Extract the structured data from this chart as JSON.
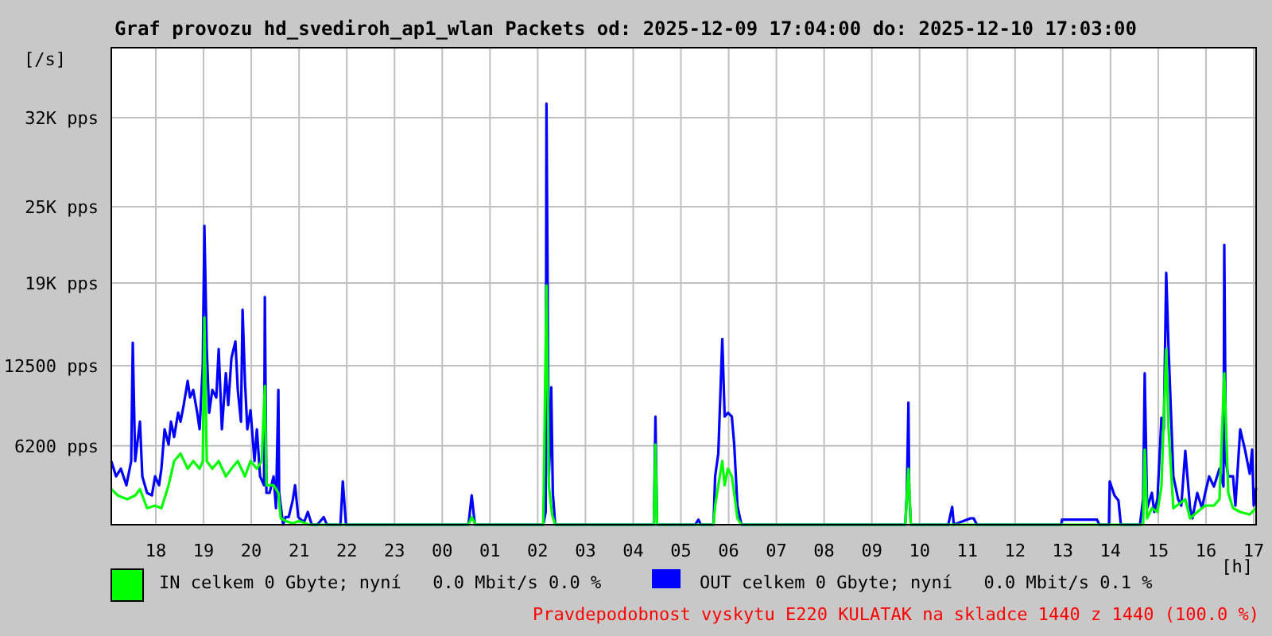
{
  "chart_data": {
    "type": "line",
    "title": "Graf provozu hd_svediroh_ap1_wlan Packets od: 2025-12-09 17:04:00 do: 2025-12-10 17:03:00",
    "ylabel": "[/s]",
    "xlabel": "[h]",
    "annotations": [
      "Pravdepodobnost vyskytu E220 KULATAK na skladce 1440 z 1440 (100.0 %)"
    ],
    "xlim": [
      "2025-12-09T17:04",
      "2025-12-10T17:03"
    ],
    "ylim": [
      0,
      37500
    ],
    "xticks": [
      {
        "value": "2025-12-09T18:00",
        "label": "18"
      },
      {
        "value": "2025-12-09T19:00",
        "label": "19"
      },
      {
        "value": "2025-12-09T20:00",
        "label": "20"
      },
      {
        "value": "2025-12-09T21:00",
        "label": "21"
      },
      {
        "value": "2025-12-09T22:00",
        "label": "22"
      },
      {
        "value": "2025-12-09T23:00",
        "label": "23"
      },
      {
        "value": "2025-12-10T00:00",
        "label": "00"
      },
      {
        "value": "2025-12-10T01:00",
        "label": "01"
      },
      {
        "value": "2025-12-10T02:00",
        "label": "02"
      },
      {
        "value": "2025-12-10T03:00",
        "label": "03"
      },
      {
        "value": "2025-12-10T04:00",
        "label": "04"
      },
      {
        "value": "2025-12-10T05:00",
        "label": "05"
      },
      {
        "value": "2025-12-10T06:00",
        "label": "06"
      },
      {
        "value": "2025-12-10T07:00",
        "label": "07"
      },
      {
        "value": "2025-12-10T08:00",
        "label": "08"
      },
      {
        "value": "2025-12-10T09:00",
        "label": "09"
      },
      {
        "value": "2025-12-10T10:00",
        "label": "10"
      },
      {
        "value": "2025-12-10T11:00",
        "label": "11"
      },
      {
        "value": "2025-12-10T12:00",
        "label": "12"
      },
      {
        "value": "2025-12-10T13:00",
        "label": "13"
      },
      {
        "value": "2025-12-10T14:00",
        "label": "14"
      },
      {
        "value": "2025-12-10T15:00",
        "label": "15"
      },
      {
        "value": "2025-12-10T16:00",
        "label": "16"
      },
      {
        "value": "2025-12-10T17:00",
        "label": "17"
      }
    ],
    "yticks": [
      {
        "value": 6200,
        "label": "6200 pps"
      },
      {
        "value": 12500,
        "label": "12500 pps"
      },
      {
        "value": 19000,
        "label": "19K pps"
      },
      {
        "value": 25000,
        "label": "25K pps"
      },
      {
        "value": 32000,
        "label": "32K pps"
      }
    ],
    "grid": true,
    "legend": "bottom",
    "marker": "none",
    "series": [
      {
        "name": "IN celkem 0 Gbyte; nyní   0.0 Mbit/s 0.0 %",
        "color": "#00ff00",
        "x": [
          "2025-12-09T17:04",
          "2025-12-09T17:12",
          "2025-12-09T17:24",
          "2025-12-09T17:34",
          "2025-12-09T17:40",
          "2025-12-09T17:49",
          "2025-12-09T17:59",
          "2025-12-09T18:07",
          "2025-12-09T18:16",
          "2025-12-09T18:23",
          "2025-12-09T18:31",
          "2025-12-09T18:40",
          "2025-12-09T18:47",
          "2025-12-09T18:55",
          "2025-12-09T18:59",
          "2025-12-09T19:01",
          "2025-12-09T19:04",
          "2025-12-09T19:11",
          "2025-12-09T19:19",
          "2025-12-09T19:28",
          "2025-12-09T19:35",
          "2025-12-09T19:43",
          "2025-12-09T19:52",
          "2025-12-09T19:59",
          "2025-12-09T20:07",
          "2025-12-09T20:13",
          "2025-12-09T20:17",
          "2025-12-09T20:19",
          "2025-12-09T20:28",
          "2025-12-09T20:34",
          "2025-12-09T20:37",
          "2025-12-09T20:43",
          "2025-12-09T20:52",
          "2025-12-09T21:00",
          "2025-12-09T21:12",
          "2025-12-10T00:33",
          "2025-12-10T00:37",
          "2025-12-10T00:42",
          "2025-12-10T02:07",
          "2025-12-10T02:11",
          "2025-12-10T02:14",
          "2025-12-10T02:18",
          "2025-12-10T02:22",
          "2025-12-10T04:26",
          "2025-12-10T04:28",
          "2025-12-10T04:30",
          "2025-12-10T05:41",
          "2025-12-10T05:43",
          "2025-12-10T05:47",
          "2025-12-10T05:52",
          "2025-12-10T05:55",
          "2025-12-10T05:59",
          "2025-12-10T06:04",
          "2025-12-10T06:07",
          "2025-12-10T06:11",
          "2025-12-10T06:16",
          "2025-12-10T09:42",
          "2025-12-10T09:46",
          "2025-12-10T09:49",
          "2025-12-10T14:41",
          "2025-12-10T14:43",
          "2025-12-10T14:46",
          "2025-12-10T14:52",
          "2025-12-10T14:59",
          "2025-12-10T15:04",
          "2025-12-10T15:10",
          "2025-12-10T15:13",
          "2025-12-10T15:19",
          "2025-12-10T15:34",
          "2025-12-10T15:40",
          "2025-12-10T15:49",
          "2025-12-10T15:59",
          "2025-12-10T16:10",
          "2025-12-10T16:17",
          "2025-12-10T16:23",
          "2025-12-10T16:28",
          "2025-12-10T16:34",
          "2025-12-10T16:43",
          "2025-12-10T16:55",
          "2025-12-10T17:03"
        ],
        "values": [
          2800,
          2300,
          2000,
          2300,
          2800,
          1300,
          1500,
          1300,
          3100,
          5000,
          5600,
          4400,
          5000,
          4400,
          5000,
          16300,
          5000,
          4400,
          5000,
          3800,
          4400,
          5000,
          3800,
          5000,
          4400,
          5000,
          10900,
          3100,
          3100,
          2500,
          500,
          300,
          100,
          300,
          0,
          0,
          600,
          0,
          0,
          18800,
          3100,
          800,
          0,
          0,
          6300,
          0,
          0,
          1500,
          3100,
          5000,
          3100,
          4400,
          3800,
          2500,
          500,
          0,
          0,
          4400,
          0,
          0,
          5900,
          500,
          1300,
          1000,
          3000,
          13800,
          7500,
          1300,
          2000,
          500,
          1000,
          1500,
          1500,
          2000,
          11900,
          2500,
          1300,
          1000,
          800,
          1300
        ]
      },
      {
        "name": "OUT celkem 0 Gbyte; nyní   0.0 Mbit/s 0.1 %",
        "color": "#0000ff",
        "x": [
          "2025-12-09T17:04",
          "2025-12-09T17:10",
          "2025-12-09T17:16",
          "2025-12-09T17:23",
          "2025-12-09T17:29",
          "2025-12-09T17:31",
          "2025-12-09T17:34",
          "2025-12-09T17:40",
          "2025-12-09T17:43",
          "2025-12-09T17:49",
          "2025-12-09T17:55",
          "2025-12-09T17:59",
          "2025-12-09T18:04",
          "2025-12-09T18:07",
          "2025-12-09T18:11",
          "2025-12-09T18:16",
          "2025-12-09T18:19",
          "2025-12-09T18:23",
          "2025-12-09T18:28",
          "2025-12-09T18:31",
          "2025-12-09T18:35",
          "2025-12-09T18:40",
          "2025-12-09T18:43",
          "2025-12-09T18:47",
          "2025-12-09T18:52",
          "2025-12-09T18:55",
          "2025-12-09T18:59",
          "2025-12-09T19:01",
          "2025-12-09T19:04",
          "2025-12-09T19:07",
          "2025-12-09T19:11",
          "2025-12-09T19:16",
          "2025-12-09T19:19",
          "2025-12-09T19:23",
          "2025-12-09T19:28",
          "2025-12-09T19:31",
          "2025-12-09T19:35",
          "2025-12-09T19:40",
          "2025-12-09T19:43",
          "2025-12-09T19:47",
          "2025-12-09T19:49",
          "2025-12-09T19:52",
          "2025-12-09T19:55",
          "2025-12-09T19:59",
          "2025-12-09T20:04",
          "2025-12-09T20:07",
          "2025-12-09T20:11",
          "2025-12-09T20:16",
          "2025-12-09T20:17",
          "2025-12-09T20:19",
          "2025-12-09T20:23",
          "2025-12-09T20:28",
          "2025-12-09T20:31",
          "2025-12-09T20:34",
          "2025-12-09T20:35",
          "2025-12-09T20:40",
          "2025-12-09T20:43",
          "2025-12-09T20:47",
          "2025-12-09T20:52",
          "2025-12-09T20:55",
          "2025-12-09T20:59",
          "2025-12-09T21:04",
          "2025-12-09T21:07",
          "2025-12-09T21:11",
          "2025-12-09T21:16",
          "2025-12-09T21:23",
          "2025-12-09T21:31",
          "2025-12-09T21:35",
          "2025-12-09T21:52",
          "2025-12-09T21:55",
          "2025-12-09T21:59",
          "2025-12-10T00:33",
          "2025-12-10T00:37",
          "2025-12-10T00:41",
          "2025-12-10T02:07",
          "2025-12-10T02:10",
          "2025-12-10T02:11",
          "2025-12-10T02:14",
          "2025-12-10T02:16",
          "2025-12-10T02:17",
          "2025-12-10T02:19",
          "2025-12-10T02:22",
          "2025-12-10T04:26",
          "2025-12-10T04:28",
          "2025-12-10T04:30",
          "2025-12-10T05:18",
          "2025-12-10T05:22",
          "2025-12-10T05:25",
          "2025-12-10T05:41",
          "2025-12-10T05:43",
          "2025-12-10T05:47",
          "2025-12-10T05:52",
          "2025-12-10T05:55",
          "2025-12-10T05:59",
          "2025-12-10T06:04",
          "2025-12-10T06:07",
          "2025-12-10T06:11",
          "2025-12-10T06:16",
          "2025-12-10T09:42",
          "2025-12-10T09:44",
          "2025-12-10T09:46",
          "2025-12-10T09:47",
          "2025-12-10T09:49",
          "2025-12-10T10:36",
          "2025-12-10T10:41",
          "2025-12-10T10:43",
          "2025-12-10T11:04",
          "2025-12-10T11:08",
          "2025-12-10T11:12",
          "2025-12-10T12:58",
          "2025-12-10T12:59",
          "2025-12-10T13:43",
          "2025-12-10T13:46",
          "2025-12-10T13:58",
          "2025-12-10T13:59",
          "2025-12-10T14:05",
          "2025-12-10T14:10",
          "2025-12-10T14:13",
          "2025-12-10T14:37",
          "2025-12-10T14:41",
          "2025-12-10T14:43",
          "2025-12-10T14:46",
          "2025-12-10T14:52",
          "2025-12-10T14:55",
          "2025-12-10T14:59",
          "2025-12-10T15:04",
          "2025-12-10T15:07",
          "2025-12-10T15:10",
          "2025-12-10T15:13",
          "2025-12-10T15:19",
          "2025-12-10T15:25",
          "2025-12-10T15:29",
          "2025-12-10T15:34",
          "2025-12-10T15:40",
          "2025-12-10T15:43",
          "2025-12-10T15:49",
          "2025-12-10T15:55",
          "2025-12-10T15:59",
          "2025-12-10T16:04",
          "2025-12-10T16:10",
          "2025-12-10T16:17",
          "2025-12-10T16:22",
          "2025-12-10T16:23",
          "2025-12-10T16:25",
          "2025-12-10T16:28",
          "2025-12-10T16:34",
          "2025-12-10T16:37",
          "2025-12-10T16:43",
          "2025-12-10T16:49",
          "2025-12-10T16:55",
          "2025-12-10T16:58",
          "2025-12-10T17:00",
          "2025-12-10T17:03"
        ],
        "values": [
          5000,
          3800,
          4400,
          3100,
          5000,
          14300,
          5000,
          8100,
          3800,
          2500,
          2300,
          3800,
          3100,
          4400,
          7500,
          6300,
          8100,
          6900,
          8800,
          8100,
          9400,
          11300,
          10000,
          10600,
          8800,
          7500,
          12500,
          23500,
          13800,
          8800,
          10600,
          10000,
          13800,
          7500,
          11900,
          9400,
          13100,
          14400,
          10600,
          8100,
          16900,
          11300,
          7500,
          9000,
          5000,
          7500,
          3800,
          3100,
          17900,
          2500,
          2500,
          3800,
          1300,
          10600,
          2500,
          0,
          600,
          600,
          1900,
          3100,
          600,
          300,
          300,
          1000,
          0,
          0,
          600,
          0,
          0,
          3400,
          0,
          0,
          2300,
          0,
          0,
          1000,
          33100,
          3800,
          7100,
          10800,
          2500,
          0,
          0,
          8500,
          0,
          0,
          400,
          0,
          0,
          3800,
          5600,
          14600,
          8500,
          8800,
          8500,
          6300,
          1500,
          0,
          0,
          2500,
          9600,
          2500,
          0,
          0,
          1400,
          0,
          500,
          500,
          0,
          0,
          400,
          400,
          0,
          0,
          3400,
          2300,
          1900,
          0,
          0,
          2000,
          11900,
          1300,
          2500,
          1000,
          2000,
          8400,
          7500,
          19800,
          13800,
          3800,
          2000,
          1500,
          5800,
          1300,
          500,
          2500,
          1300,
          2500,
          3800,
          3000,
          4400,
          3000,
          22000,
          5000,
          3800,
          3800,
          1500,
          7500,
          5900,
          4000,
          5900,
          1500,
          2900
        ]
      }
    ]
  }
}
